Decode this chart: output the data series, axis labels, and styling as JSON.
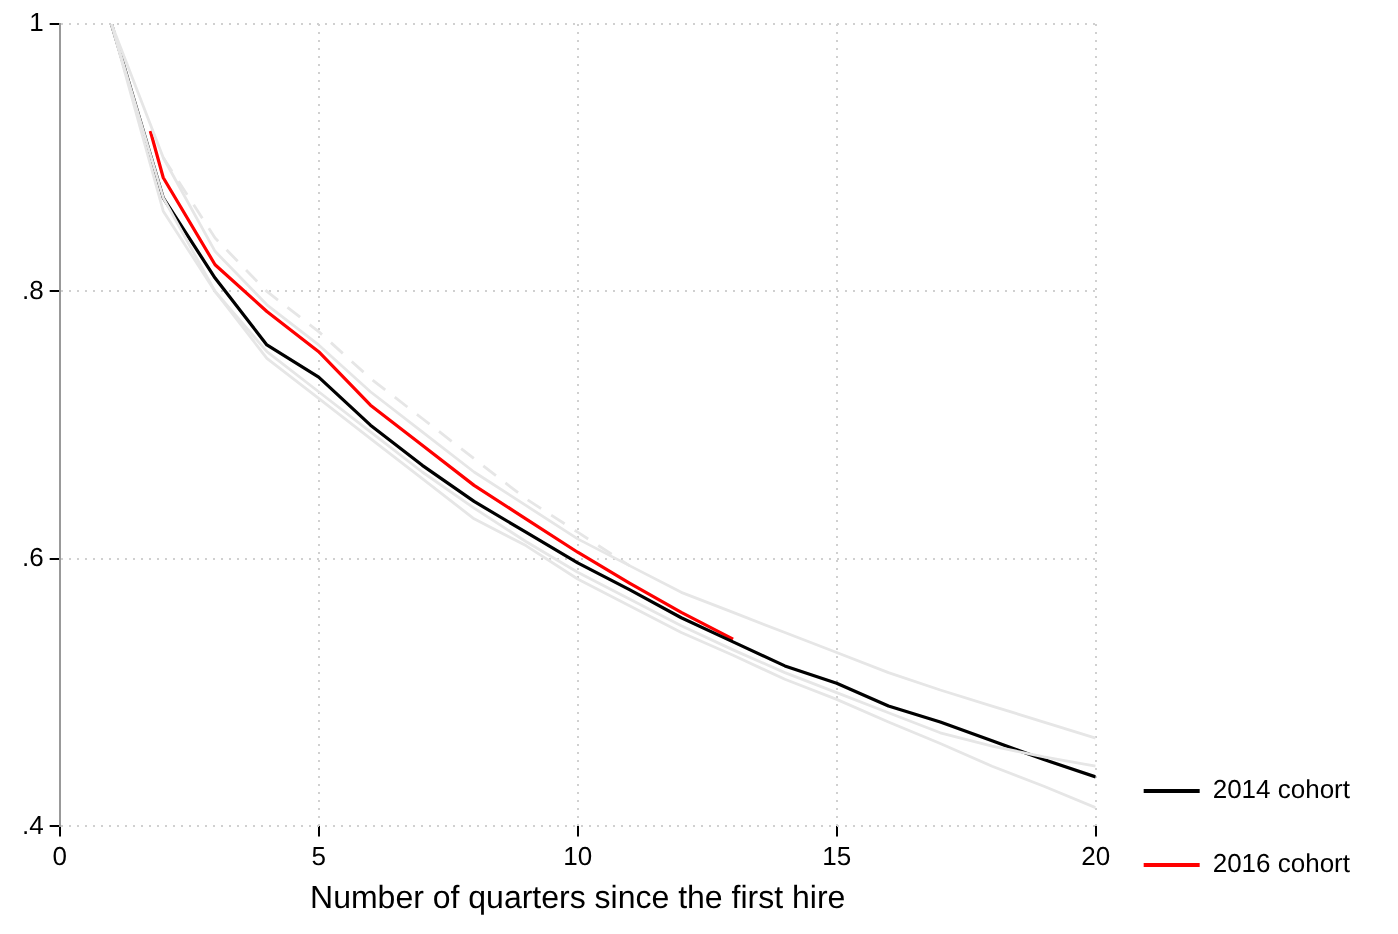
{
  "chart_data": {
    "type": "line",
    "xlabel": "Number of quarters since the first hire",
    "xlim": [
      0,
      20
    ],
    "xticks": [
      0,
      5,
      10,
      15,
      20
    ],
    "ylim": [
      0.4,
      1
    ],
    "yticks": [
      {
        "value": 0.4,
        "label": ".4"
      },
      {
        "value": 0.6,
        "label": ".6"
      },
      {
        "value": 0.8,
        "label": ".8"
      },
      {
        "value": 1,
        "label": "1"
      }
    ],
    "grid": true,
    "legend": "right",
    "marker": "none",
    "line_style": "solid",
    "series": [
      {
        "color": "#e6e6e6",
        "x": [
          1,
          2,
          3,
          4,
          5,
          6,
          7,
          8,
          9,
          10,
          11,
          12,
          13,
          14,
          15,
          16,
          17,
          18,
          19,
          20
        ],
        "values": [
          1,
          0.9,
          0.83,
          0.79,
          0.76,
          0.725,
          0.695,
          0.665,
          0.64,
          0.615,
          0.595,
          0.575,
          0.56,
          0.545,
          0.53,
          0.515,
          0.502,
          0.49,
          0.478,
          0.466
        ]
      },
      {
        "color": "#e6e6e6",
        "x": [
          1,
          2,
          3,
          4,
          5,
          6,
          7,
          8,
          9,
          10,
          11,
          12,
          13,
          14,
          15,
          16,
          17,
          18,
          19,
          20
        ],
        "values": [
          1,
          0.86,
          0.8,
          0.75,
          0.72,
          0.69,
          0.66,
          0.63,
          0.61,
          0.585,
          0.565,
          0.545,
          0.528,
          0.51,
          0.495,
          0.478,
          0.462,
          0.445,
          0.43,
          0.414
        ]
      },
      {
        "color": "#e6e6e6",
        "x": [
          1,
          2,
          3,
          4,
          5,
          6,
          7,
          8,
          9,
          10,
          11,
          12,
          13,
          14,
          15,
          16,
          17,
          18,
          19,
          20
        ],
        "values": [
          1,
          0.87,
          0.8,
          0.755,
          0.725,
          0.695,
          0.665,
          0.638,
          0.613,
          0.59,
          0.57,
          0.55,
          0.532,
          0.515,
          0.5,
          0.485,
          0.47,
          0.46,
          0.452,
          0.445
        ]
      },
      {
        "color": "#e6e6e6",
        "line_style": "dashed",
        "x": [
          2,
          3,
          4,
          5,
          6,
          7,
          8,
          9,
          10,
          11
        ],
        "values": [
          0.9,
          0.84,
          0.8,
          0.77,
          0.735,
          0.705,
          0.675,
          0.645,
          0.62,
          0.595
        ]
      },
      {
        "name": "2014 cohort",
        "color": "#000000",
        "x": [
          1,
          2,
          3,
          4,
          5,
          6,
          7,
          8,
          9,
          10,
          11,
          12,
          13,
          14,
          15,
          16,
          17,
          18,
          19,
          20
        ],
        "values": [
          1,
          0.87,
          0.81,
          0.76,
          0.736,
          0.7,
          0.67,
          0.643,
          0.62,
          0.597,
          0.577,
          0.556,
          0.538,
          0.52,
          0.507,
          0.49,
          0.478,
          0.464,
          0.45,
          0.437
        ]
      },
      {
        "name": "2016 cohort",
        "color": "#ff0000",
        "x": [
          1.75,
          2,
          3,
          4,
          5,
          6,
          7,
          8,
          9,
          10,
          11,
          12,
          13
        ],
        "values": [
          0.92,
          0.885,
          0.82,
          0.785,
          0.755,
          0.715,
          0.685,
          0.655,
          0.63,
          0.605,
          0.582,
          0.56,
          0.54
        ]
      }
    ]
  }
}
